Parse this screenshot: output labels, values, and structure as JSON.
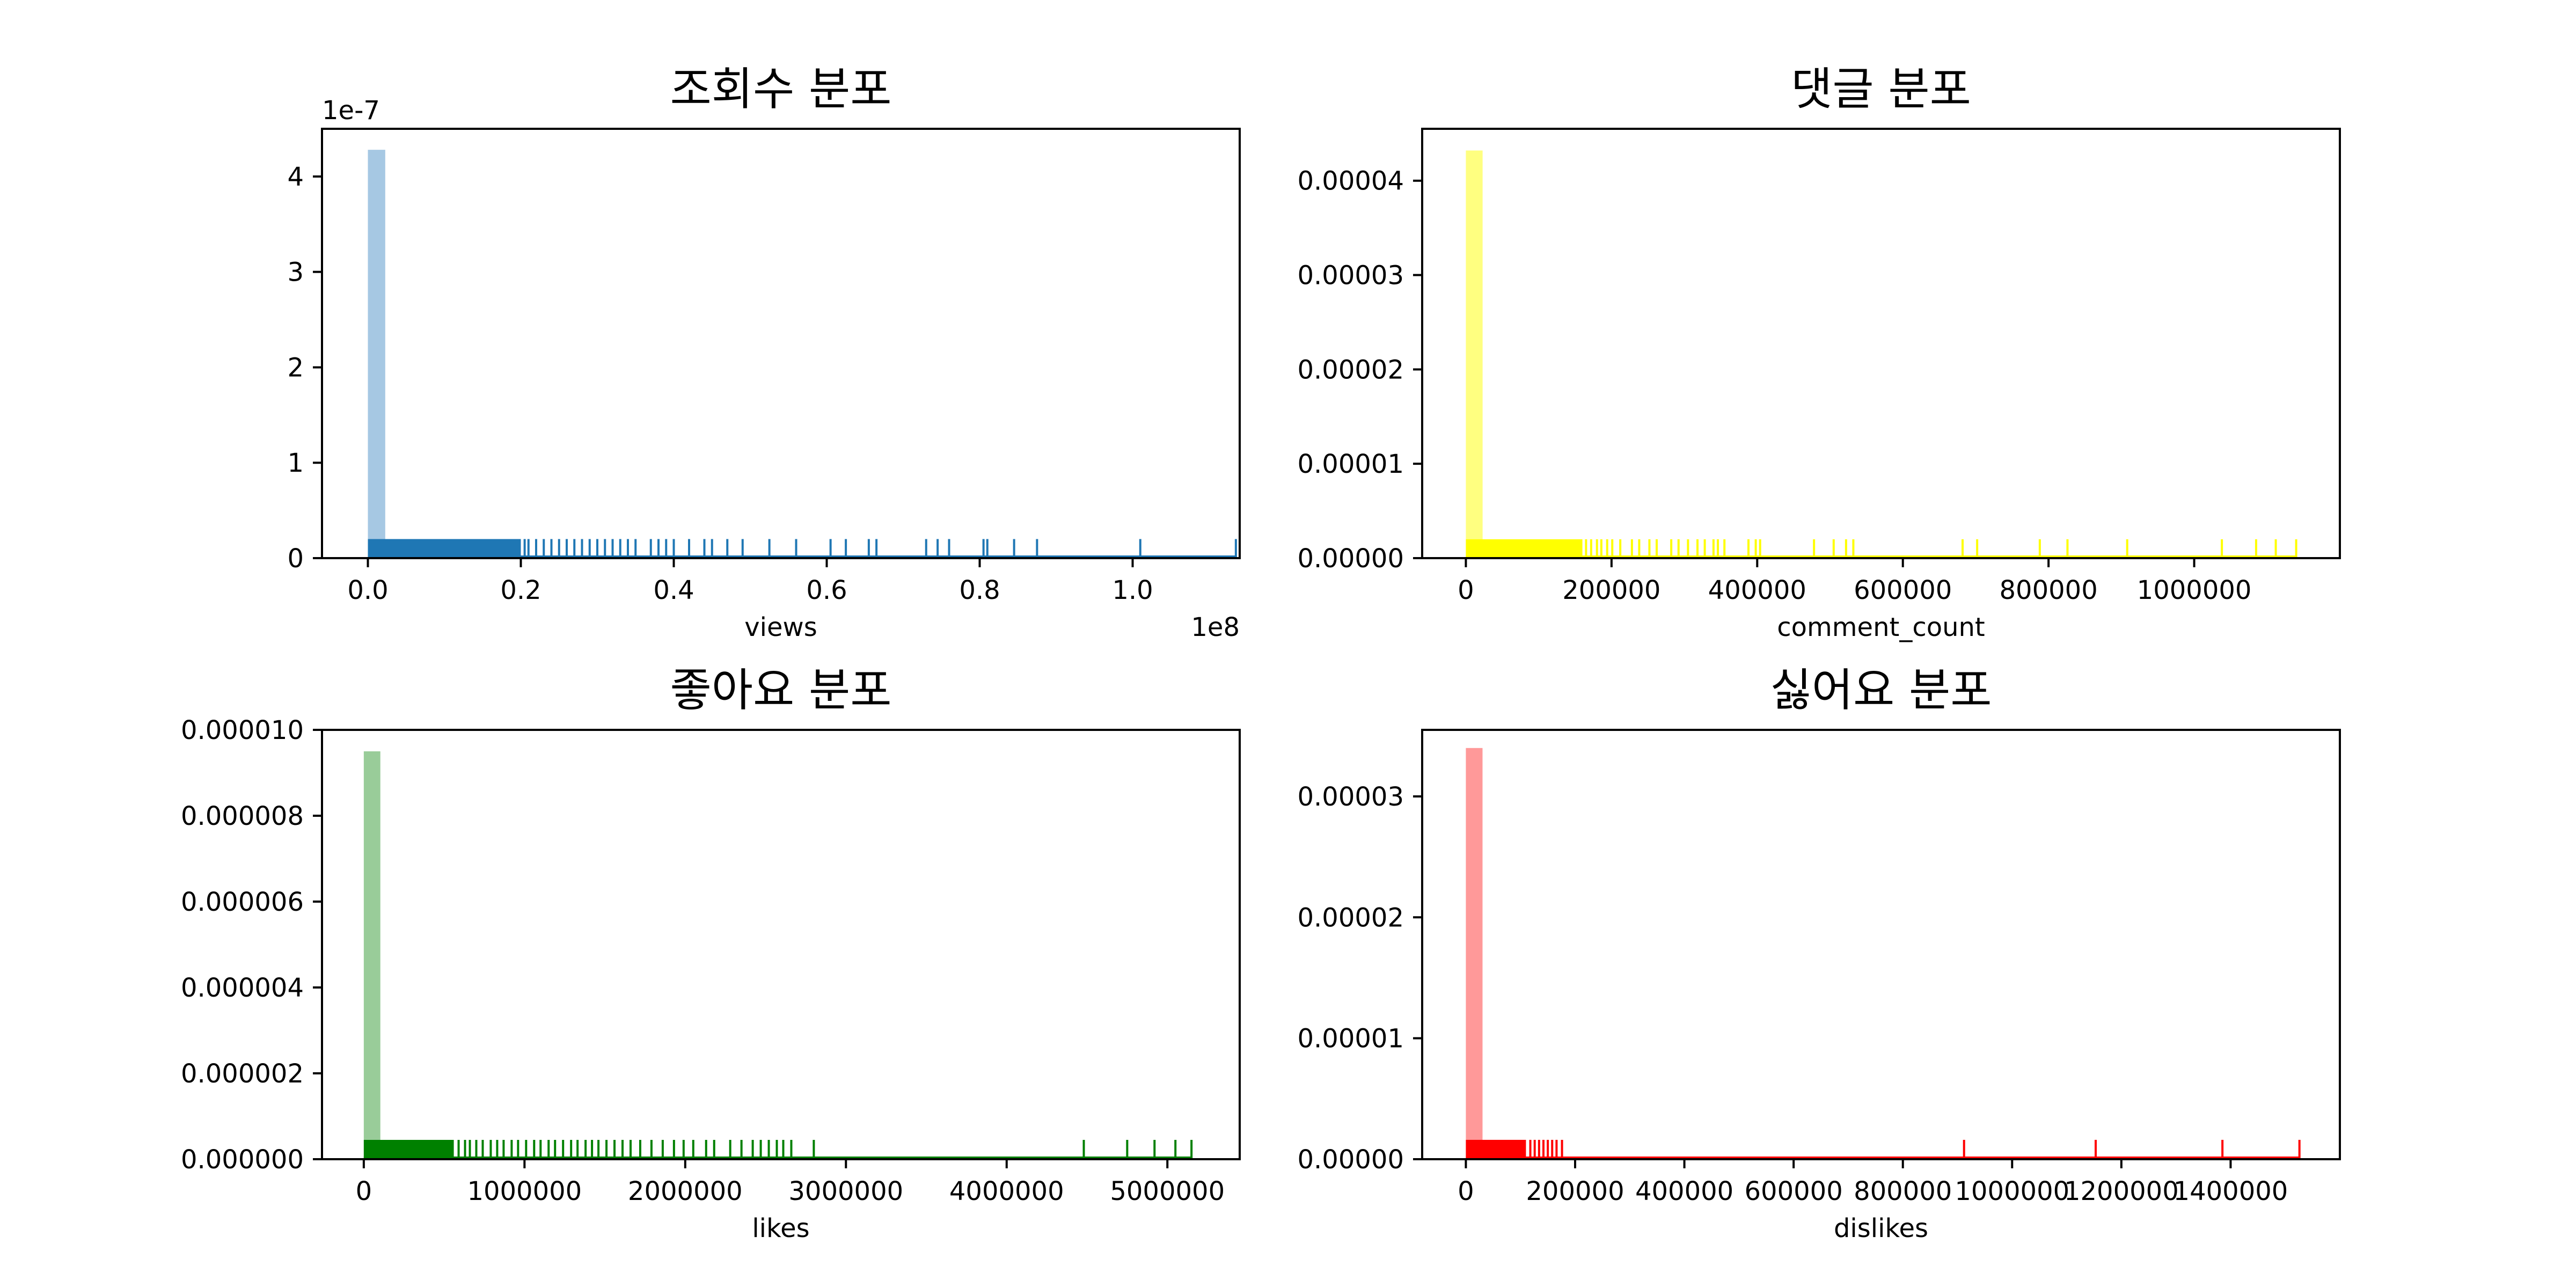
{
  "chart_data": [
    {
      "type": "histogram",
      "title": "조회수 분포",
      "xlabel": "views",
      "ylabel": "",
      "x_offset_label": "1e8",
      "y_offset_label": "1e-7",
      "xlim": [
        -0.06,
        1.14
      ],
      "ylim": [
        0,
        4.5
      ],
      "xticks": [
        0.0,
        0.2,
        0.4,
        0.6,
        0.8,
        1.0
      ],
      "xtick_labels": [
        "0.0",
        "0.2",
        "0.4",
        "0.6",
        "0.8",
        "1.0"
      ],
      "yticks": [
        0,
        1,
        2,
        3,
        4
      ],
      "ytick_labels": [
        "0",
        "1",
        "2",
        "3",
        "4"
      ],
      "bin_edges": [
        0.0,
        0.0227
      ],
      "bin_heights": [
        4.28
      ],
      "bar_color": "#a6c8e3",
      "rug_color": "#1f77b4",
      "rug_height": 0.2,
      "rug_dense_range": [
        0.0,
        0.2
      ],
      "rug_values": [
        0.205,
        0.21,
        0.22,
        0.23,
        0.24,
        0.25,
        0.26,
        0.27,
        0.28,
        0.29,
        0.3,
        0.31,
        0.32,
        0.33,
        0.34,
        0.35,
        0.37,
        0.38,
        0.39,
        0.4,
        0.42,
        0.44,
        0.45,
        0.47,
        0.49,
        0.525,
        0.56,
        0.605,
        0.625,
        0.655,
        0.665,
        0.73,
        0.745,
        0.76,
        0.805,
        0.81,
        0.845,
        0.875,
        1.01,
        1.135
      ]
    },
    {
      "type": "histogram",
      "title": "댓글 분포",
      "xlabel": "comment_count",
      "ylabel": "",
      "xlim": [
        -60000,
        1200000
      ],
      "ylim": [
        0,
        4.55e-05
      ],
      "xticks": [
        0,
        200000,
        400000,
        600000,
        800000,
        1000000
      ],
      "xtick_labels": [
        "0",
        "200000",
        "400000",
        "600000",
        "800000",
        "1000000"
      ],
      "yticks": [
        0,
        1e-05,
        2e-05,
        3e-05,
        4e-05
      ],
      "ytick_labels": [
        "0.00000",
        "0.00001",
        "0.00002",
        "0.00003",
        "0.00004"
      ],
      "bin_edges": [
        0,
        23000
      ],
      "bin_heights": [
        4.32e-05
      ],
      "bar_color": "#ffff80",
      "rug_color": "#ffff00",
      "rug_height": 2e-06,
      "rug_dense_range": [
        0,
        160000
      ],
      "rug_values": [
        165000,
        172000,
        180000,
        186000,
        194000,
        201000,
        212000,
        228000,
        238000,
        252000,
        262000,
        282000,
        292000,
        305000,
        318000,
        328000,
        340000,
        346000,
        355000,
        388000,
        398000,
        404000,
        478000,
        505000,
        522000,
        532000,
        682000,
        702000,
        788000,
        826000,
        908000,
        1038000,
        1085000,
        1112000,
        1140000
      ]
    },
    {
      "type": "histogram",
      "title": "좋아요 분포",
      "xlabel": "likes",
      "ylabel": "",
      "xlim": [
        -260000,
        5450000
      ],
      "ylim": [
        0,
        1e-05
      ],
      "xticks": [
        0,
        1000000,
        2000000,
        3000000,
        4000000,
        5000000
      ],
      "xtick_labels": [
        "0",
        "1000000",
        "2000000",
        "3000000",
        "4000000",
        "5000000"
      ],
      "yticks": [
        0,
        2e-06,
        4e-06,
        6e-06,
        8e-06,
        1e-05
      ],
      "ytick_labels": [
        "0.000000",
        "0.000002",
        "0.000004",
        "0.000006",
        "0.000008",
        "0.000010"
      ],
      "bin_edges": [
        0,
        103000
      ],
      "bin_heights": [
        9.5e-06
      ],
      "bar_color": "#99cc99",
      "rug_color": "#008000",
      "rug_height": 4.5e-07,
      "rug_dense_range": [
        0,
        560000
      ],
      "rug_values": [
        590000,
        630000,
        660000,
        700000,
        740000,
        790000,
        830000,
        870000,
        920000,
        960000,
        1010000,
        1060000,
        1100000,
        1150000,
        1190000,
        1240000,
        1290000,
        1330000,
        1380000,
        1420000,
        1460000,
        1510000,
        1560000,
        1610000,
        1660000,
        1720000,
        1790000,
        1860000,
        1930000,
        1990000,
        2050000,
        2130000,
        2180000,
        2280000,
        2350000,
        2420000,
        2470000,
        2520000,
        2570000,
        2610000,
        2660000,
        2800000,
        4480000,
        4750000,
        4920000,
        5050000,
        5150000
      ]
    },
    {
      "type": "histogram",
      "title": "싫어요 분포",
      "xlabel": "dislikes",
      "ylabel": "",
      "xlim": [
        -80000,
        1600000
      ],
      "ylim": [
        0,
        3.55e-05
      ],
      "xticks": [
        0,
        200000,
        400000,
        600000,
        800000,
        1000000,
        1200000,
        1400000
      ],
      "xtick_labels": [
        "0",
        "200000",
        "400000",
        "600000",
        "800000",
        "1000000",
        "1200000",
        "1400000"
      ],
      "yticks": [
        0,
        1e-05,
        2e-05,
        3e-05
      ],
      "ytick_labels": [
        "0.00000",
        "0.00001",
        "0.00002",
        "0.00003"
      ],
      "bin_edges": [
        0,
        30500
      ],
      "bin_heights": [
        3.4e-05
      ],
      "bar_color": "#ff9999",
      "rug_color": "#ff0000",
      "rug_height": 1.6e-06,
      "rug_dense_range": [
        0,
        110000
      ],
      "rug_values": [
        118000,
        126000,
        134000,
        142000,
        150000,
        158000,
        166000,
        176000,
        912000,
        1153000,
        1385000,
        1526000
      ]
    }
  ]
}
